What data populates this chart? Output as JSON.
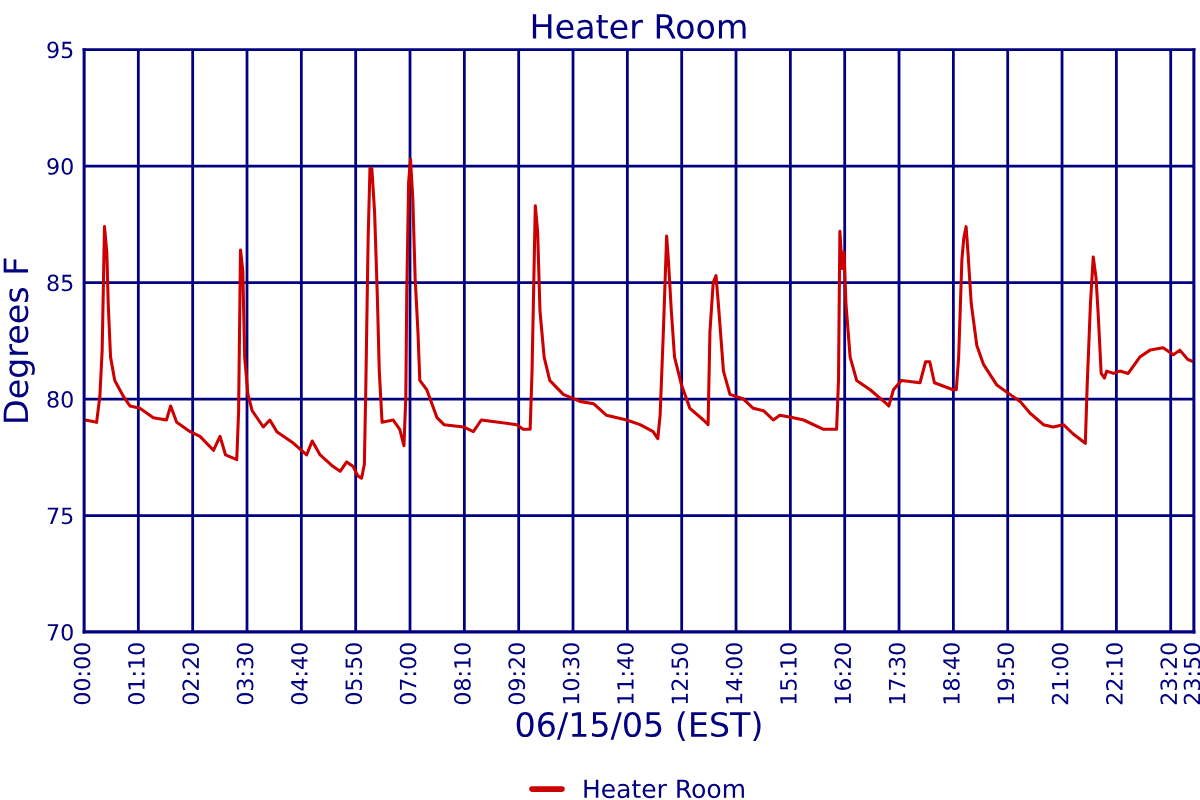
{
  "chart_data": {
    "type": "line",
    "title": "Heater Room",
    "xlabel": "06/15/05 (EST)",
    "ylabel": "Degrees F",
    "xlim": [
      0,
      23.8333
    ],
    "ylim": [
      70,
      95
    ],
    "yticks": [
      70,
      75,
      80,
      85,
      90,
      95
    ],
    "xticks": [
      {
        "value": 0,
        "label": "00:00"
      },
      {
        "value": 1.1667,
        "label": "01:10"
      },
      {
        "value": 2.3333,
        "label": "02:20"
      },
      {
        "value": 3.5,
        "label": "03:30"
      },
      {
        "value": 4.6667,
        "label": "04:40"
      },
      {
        "value": 5.8333,
        "label": "05:50"
      },
      {
        "value": 7,
        "label": "07:00"
      },
      {
        "value": 8.1667,
        "label": "08:10"
      },
      {
        "value": 9.3333,
        "label": "09:20"
      },
      {
        "value": 10.5,
        "label": "10:30"
      },
      {
        "value": 11.6667,
        "label": "11:40"
      },
      {
        "value": 12.8333,
        "label": "12:50"
      },
      {
        "value": 14,
        "label": "14:00"
      },
      {
        "value": 15.1667,
        "label": "15:10"
      },
      {
        "value": 16.3333,
        "label": "16:20"
      },
      {
        "value": 17.5,
        "label": "17:30"
      },
      {
        "value": 18.6667,
        "label": "18:40"
      },
      {
        "value": 19.8333,
        "label": "19:50"
      },
      {
        "value": 21,
        "label": "21:00"
      },
      {
        "value": 22.1667,
        "label": "22:10"
      },
      {
        "value": 23.3333,
        "label": "23:20"
      },
      {
        "value": 23.8333,
        "label": "23:50"
      }
    ],
    "grid": true,
    "legend": "bottom",
    "marker": "none",
    "line_style": "solid",
    "series": [
      {
        "name": "Heater Room",
        "color": "#cc0000",
        "x": [
          0.03,
          0.27,
          0.34,
          0.39,
          0.44,
          0.49,
          0.52,
          0.57,
          0.66,
          0.85,
          0.99,
          1.2,
          1.49,
          1.77,
          1.86,
          1.99,
          2.28,
          2.49,
          2.78,
          2.92,
          3.04,
          3.28,
          3.32,
          3.36,
          3.41,
          3.45,
          3.52,
          3.61,
          3.85,
          3.99,
          4.14,
          4.5,
          4.78,
          4.9,
          5.07,
          5.35,
          5.5,
          5.64,
          5.78,
          5.88,
          5.96,
          6.02,
          6.05,
          6.1,
          6.14,
          6.18,
          6.24,
          6.3,
          6.34,
          6.4,
          6.64,
          6.78,
          6.87,
          6.91,
          6.93,
          6.97,
          7.01,
          7.06,
          7.11,
          7.17,
          7.21,
          7.36,
          7.58,
          7.73,
          8.15,
          8.36,
          8.53,
          9.29,
          9.43,
          9.58,
          9.62,
          9.69,
          9.74,
          9.79,
          9.88,
          10.0,
          10.29,
          10.65,
          10.94,
          11.22,
          11.65,
          11.94,
          12.22,
          12.32,
          12.37,
          12.44,
          12.51,
          12.55,
          12.61,
          12.68,
          12.83,
          13.01,
          13.3,
          13.4,
          13.44,
          13.51,
          13.57,
          13.62,
          13.73,
          13.87,
          14.16,
          14.37,
          14.59,
          14.8,
          14.94,
          15.23,
          15.45,
          15.88,
          16.16,
          16.2,
          16.23,
          16.28,
          16.32,
          16.36,
          16.45,
          16.59,
          16.88,
          17.23,
          17.28,
          17.38,
          17.55,
          17.95,
          18.07,
          18.16,
          18.26,
          18.66,
          18.73,
          18.78,
          18.85,
          18.89,
          18.94,
          18.98,
          19.05,
          19.17,
          19.31,
          19.6,
          19.88,
          20.1,
          20.31,
          20.6,
          20.81,
          21.03,
          21.24,
          21.5,
          21.54,
          21.61,
          21.67,
          21.73,
          21.78,
          21.84,
          21.91,
          21.96,
          22.1,
          22.24,
          22.42,
          22.67,
          22.89,
          23.17,
          23.39,
          23.53,
          23.7,
          23.82
        ],
        "values": [
          79.1,
          79.0,
          80.1,
          82.1,
          87.4,
          86.3,
          84.1,
          81.8,
          80.8,
          80.1,
          79.7,
          79.6,
          79.2,
          79.1,
          79.7,
          79.0,
          78.6,
          78.4,
          77.8,
          78.4,
          77.6,
          77.4,
          79.5,
          86.4,
          85.5,
          81.8,
          80.2,
          79.5,
          78.8,
          79.1,
          78.6,
          78.1,
          77.6,
          78.2,
          77.6,
          77.1,
          76.9,
          77.3,
          77.1,
          76.7,
          76.6,
          77.2,
          80.4,
          86.8,
          89.9,
          89.9,
          88.0,
          84.3,
          81.2,
          79.0,
          79.1,
          78.7,
          78.0,
          80.1,
          84.5,
          89.3,
          90.3,
          88.6,
          85.2,
          82.9,
          80.8,
          80.4,
          79.2,
          78.9,
          78.8,
          78.6,
          79.1,
          78.9,
          78.7,
          78.7,
          81.2,
          88.3,
          87.2,
          83.8,
          81.8,
          80.8,
          80.2,
          79.9,
          79.8,
          79.3,
          79.1,
          78.9,
          78.6,
          78.3,
          79.3,
          82.9,
          87.0,
          85.9,
          83.8,
          81.8,
          80.6,
          79.6,
          79.1,
          78.9,
          82.9,
          85.0,
          85.3,
          84.1,
          81.2,
          80.2,
          80.0,
          79.6,
          79.5,
          79.1,
          79.3,
          79.2,
          79.1,
          78.7,
          78.7,
          80.8,
          87.2,
          85.6,
          86.3,
          84.1,
          81.8,
          80.8,
          80.4,
          79.8,
          79.7,
          80.4,
          80.8,
          80.7,
          81.6,
          81.6,
          80.7,
          80.4,
          80.4,
          81.8,
          86.0,
          86.9,
          87.4,
          86.3,
          84.1,
          82.3,
          81.5,
          80.6,
          80.2,
          79.9,
          79.4,
          78.9,
          78.8,
          78.9,
          78.5,
          78.1,
          80.6,
          84.1,
          86.1,
          85.2,
          83.5,
          81.1,
          80.9,
          81.2,
          81.1,
          81.2,
          81.1,
          81.8,
          82.1,
          82.2,
          81.9,
          82.1,
          81.7,
          81.6
        ]
      }
    ]
  }
}
